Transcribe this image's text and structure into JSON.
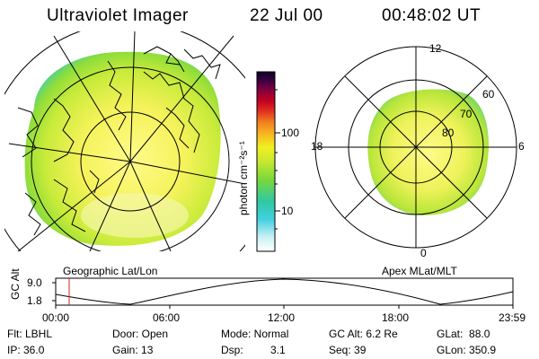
{
  "header": {
    "instrument": "Ultraviolet Imager",
    "date": "22 Jul 00",
    "time": "00:48:02 UT"
  },
  "left_panel": {
    "caption": "Geographic Lat/Lon"
  },
  "right_panel": {
    "caption": "Apex MLat/MLT",
    "mlt_labels": [
      "12",
      "18",
      "6",
      "0"
    ],
    "mlat_labels": [
      "60",
      "70",
      "80"
    ]
  },
  "colorbar": {
    "unit_label": "photon cm⁻²s⁻¹",
    "ticks": [
      "100",
      "10"
    ],
    "scale": "log"
  },
  "timeline": {
    "ylabel": "GC Alt",
    "yticks": [
      "9.0",
      "1.8"
    ],
    "xticks": [
      "00:00",
      "06:00",
      "12:00",
      "18:00",
      "23:59"
    ],
    "marker_time_hours": 0.8
  },
  "status": {
    "flt": "Flt: LBHL",
    "ip": "IP: 36.0",
    "door": "Door: Open",
    "gain": "Gain: 13",
    "mode": "Mode: Normal",
    "dsp_label": "Dsp:",
    "dsp_value": "3.1",
    "gc_alt": "GC Alt: 6.2 Re",
    "seq": "Seq: 39",
    "glat": "GLat:  88.0",
    "glon": "GLon: 350.9"
  }
}
